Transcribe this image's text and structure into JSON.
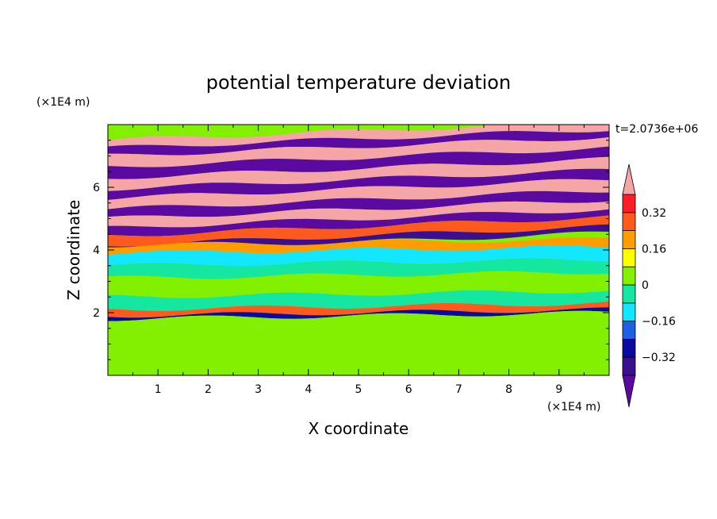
{
  "chart_data": {
    "type": "heatmap",
    "title": "potential temperature deviation",
    "xlabel": "X coordinate",
    "ylabel": "Z coordinate",
    "x_unit": "(×1E4 m)",
    "y_unit": "(×1E4 m)",
    "time_label": "t=2.0736e+06",
    "xlim": [
      0,
      10
    ],
    "ylim": [
      0,
      8
    ],
    "x_ticks": [
      "1",
      "2",
      "3",
      "4",
      "5",
      "6",
      "7",
      "8",
      "9"
    ],
    "y_ticks": [
      "2",
      "4",
      "6"
    ],
    "colorbar": {
      "levels": [
        -0.4,
        -0.32,
        -0.24,
        -0.16,
        -0.08,
        0,
        0.08,
        0.16,
        0.24,
        0.32,
        0.4
      ],
      "labels": [
        "0.32",
        "0.16",
        "0",
        "−0.16",
        "−0.32"
      ],
      "label_values": [
        0.32,
        0.16,
        0,
        -0.16,
        -0.32
      ],
      "colors": [
        "#3b0f8f",
        "#0a0aa0",
        "#1e5fe6",
        "#13e6ff",
        "#15e6a0",
        "#82f000",
        "#ffff00",
        "#ff9d00",
        "#ff5a1e",
        "#ff1e28"
      ],
      "under_color": "#5a0aa0",
      "over_color": "#f5a5a5"
    },
    "bands": [
      {
        "z0": 7.55,
        "z1": 7.8,
        "level": "over"
      },
      {
        "z0": 7.3,
        "z1": 7.55,
        "level": "under"
      },
      {
        "z0": 6.95,
        "z1": 7.3,
        "level": "over"
      },
      {
        "z0": 6.6,
        "z1": 6.95,
        "level": "under"
      },
      {
        "z0": 6.25,
        "z1": 6.6,
        "level": "over"
      },
      {
        "z0": 5.95,
        "z1": 6.25,
        "level": "under"
      },
      {
        "z0": 5.6,
        "z1": 5.95,
        "level": "over"
      },
      {
        "z0": 5.3,
        "z1": 5.6,
        "level": "under"
      },
      {
        "z0": 5.0,
        "z1": 5.3,
        "level": "over"
      },
      {
        "z0": 4.75,
        "z1": 5.0,
        "level": "under"
      },
      {
        "z0": 4.45,
        "z1": 4.75,
        "level": 8
      },
      {
        "z0": 4.25,
        "z1": 4.45,
        "level": 0
      },
      {
        "z0": 4.0,
        "z1": 4.25,
        "level": 7
      },
      {
        "z0": 3.6,
        "z1": 4.0,
        "level": 3
      },
      {
        "z0": 3.2,
        "z1": 3.6,
        "level": 4
      },
      {
        "z0": 2.6,
        "z1": 3.2,
        "level": 5
      },
      {
        "z0": 2.2,
        "z1": 2.6,
        "level": 4
      },
      {
        "z0": 2.0,
        "z1": 2.2,
        "level": 8
      },
      {
        "z0": 1.9,
        "z1": 2.0,
        "level": 1
      },
      {
        "z0": 0.0,
        "z1": 1.9,
        "level": 5
      }
    ]
  }
}
